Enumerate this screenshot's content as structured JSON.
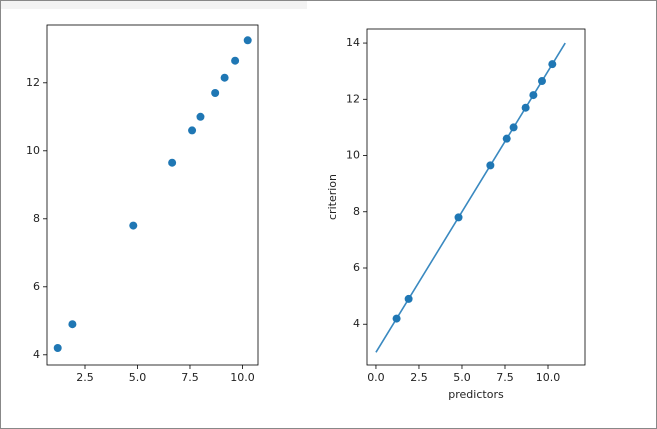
{
  "chart_data": [
    {
      "type": "scatter",
      "color": "#1f77b4",
      "x": [
        1.2,
        1.9,
        4.8,
        6.65,
        7.6,
        8.0,
        8.7,
        9.15,
        9.65,
        10.25
      ],
      "y": [
        4.2,
        4.9,
        7.8,
        9.65,
        10.6,
        11.0,
        11.7,
        12.15,
        12.65,
        13.25
      ],
      "xlim": [
        0.69,
        10.74
      ],
      "ylim": [
        3.7,
        13.7
      ],
      "xticks": [
        2.5,
        {
          "value": 5,
          "label": "5.0"
        },
        7.5,
        {
          "value": 10,
          "label": "10.0"
        }
      ],
      "yticks": [
        4,
        6,
        8,
        10,
        12
      ]
    },
    {
      "type": "scatter",
      "color": "#1f77b4",
      "line_color": "#3a89c0",
      "x": [
        1.2,
        1.9,
        4.8,
        6.65,
        7.6,
        8.0,
        8.7,
        9.15,
        9.65,
        10.25
      ],
      "y": [
        4.2,
        4.9,
        7.8,
        9.65,
        10.6,
        11.0,
        11.7,
        12.15,
        12.65,
        13.25
      ],
      "line": {
        "x": [
          0,
          11
        ],
        "y": [
          3,
          14
        ]
      },
      "xlabel": "predictors",
      "ylabel": "criterion",
      "xlim": [
        -0.52,
        12.15
      ],
      "ylim": [
        2.55,
        14.5
      ],
      "xticks": [
        {
          "value": 0,
          "label": "0.0"
        },
        2.5,
        {
          "value": 5,
          "label": "5.0"
        },
        7.5,
        {
          "value": 10,
          "label": "10.0"
        }
      ],
      "yticks": [
        4,
        6,
        8,
        10,
        12,
        14
      ]
    }
  ]
}
